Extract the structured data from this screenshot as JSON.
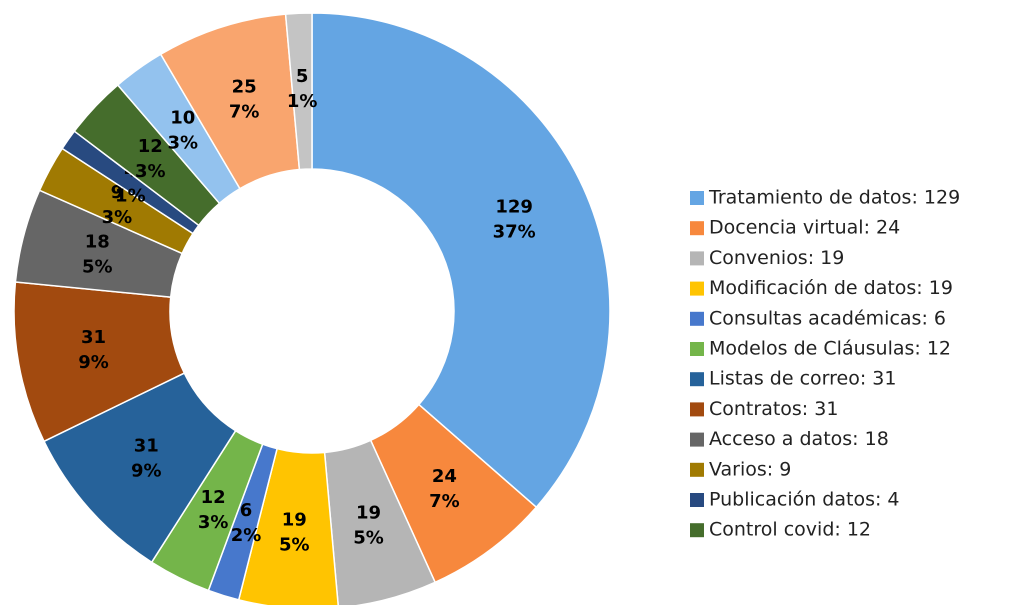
{
  "chart_data": {
    "type": "donut",
    "categories": [
      "Tratamiento de datos: 129",
      "Docencia virtual: 24",
      "Convenios: 19",
      "Modificación de datos: 19",
      "Consultas académicas: 6",
      "Modelos de Cláusulas: 12",
      "Listas de correo: 31",
      "Contratos: 31",
      "Acceso a datos: 18",
      "Varios: 9",
      "Publicación datos: 4",
      "Control covid: 12",
      null,
      null,
      null
    ],
    "values": [
      129,
      24,
      19,
      19,
      6,
      12,
      31,
      31,
      18,
      9,
      4,
      12,
      10,
      25,
      5
    ],
    "percents": [
      37,
      7,
      5,
      5,
      2,
      3,
      9,
      9,
      5,
      3,
      1,
      3,
      3,
      7,
      1
    ],
    "percent_labels": [
      "37%",
      "7%",
      "5%",
      "5%",
      "2%",
      "3%",
      "9%",
      "9%",
      "5%",
      "3%",
      "1%",
      "3%",
      "3%",
      "7%",
      "1%"
    ],
    "colors": [
      "#64a5e3",
      "#f7883d",
      "#b5b5b5",
      "#ffc401",
      "#4778cc",
      "#74b54a",
      "#26629a",
      "#a24a0f",
      "#666666",
      "#a07a02",
      "#284a80",
      "#456d2c",
      "#93c2ee",
      "#f9a56e",
      "#c4c4c4"
    ],
    "legend": true
  }
}
